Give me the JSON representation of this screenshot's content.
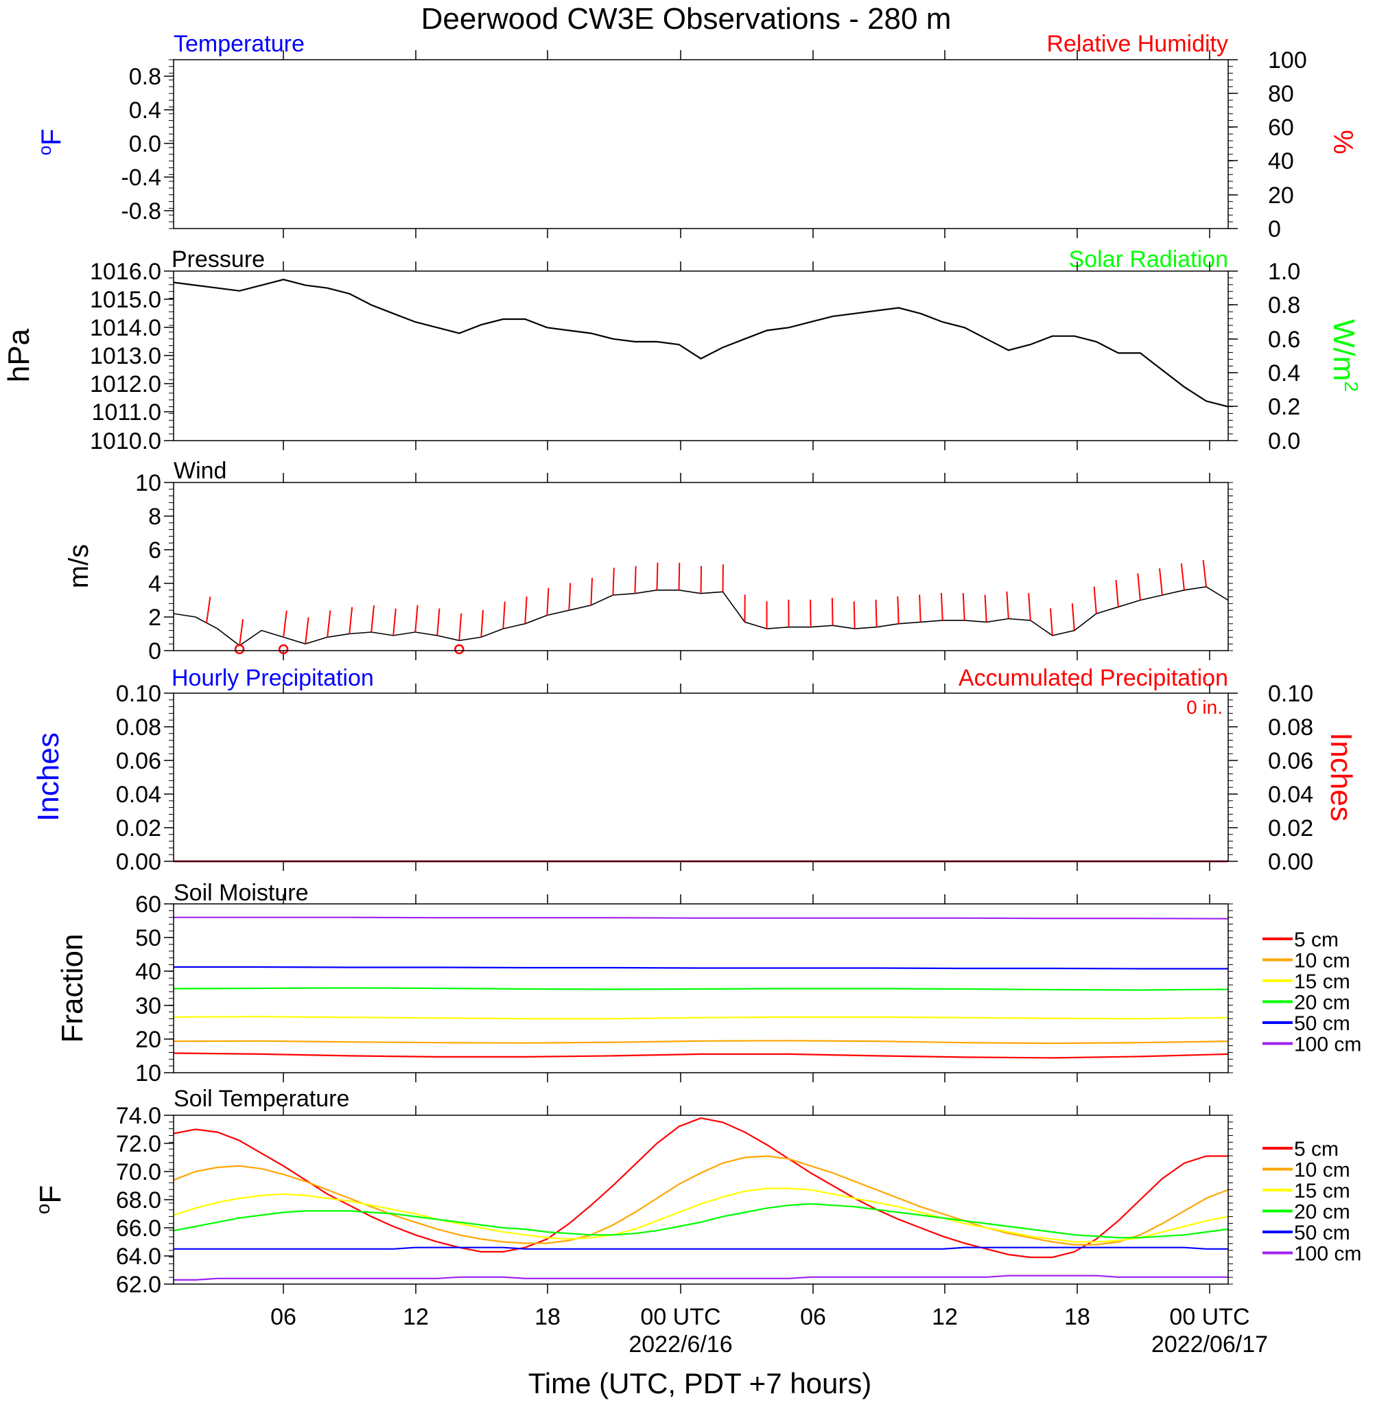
{
  "title": "Deerwood CW3E Observations - 280 m",
  "xlabel": "Time (UTC, PDT +7 hours)",
  "x_ticks": [
    {
      "label": "06",
      "date": ""
    },
    {
      "label": "12",
      "date": ""
    },
    {
      "label": "18",
      "date": ""
    },
    {
      "label": "00 UTC",
      "date": "2022/6/16"
    },
    {
      "label": "06",
      "date": ""
    },
    {
      "label": "12",
      "date": ""
    },
    {
      "label": "18",
      "date": ""
    },
    {
      "label": "00 UTC",
      "date": "2022/06/17"
    }
  ],
  "colors": {
    "red": "#ff0000",
    "orange": "#ffa500",
    "yellow": "#ffff00",
    "green": "#00ff00",
    "blue": "#0000ff",
    "purple": "#a020f0",
    "black": "#000000"
  },
  "panels": {
    "temperature": {
      "left_title": "Temperature",
      "right_title": "Relative Humidity",
      "left_unit": "oF",
      "right_unit": "%",
      "left_ticks": [
        "0.8",
        "0.4",
        "0.0",
        "-0.4",
        "-0.8"
      ],
      "right_ticks": [
        "100",
        "80",
        "60",
        "40",
        "20",
        "0"
      ]
    },
    "pressure": {
      "left_title": "Pressure",
      "right_title": "Solar Radiation",
      "left_unit": "hPa",
      "right_unit": "W/m2",
      "left_ticks": [
        "1016.0",
        "1015.0",
        "1014.0",
        "1013.0",
        "1012.0",
        "1011.0",
        "1010.0"
      ],
      "right_ticks": [
        "1.0",
        "0.8",
        "0.6",
        "0.4",
        "0.2",
        "0.0"
      ]
    },
    "wind": {
      "left_title": "Wind",
      "left_unit": "m/s",
      "left_ticks": [
        "10",
        "8",
        "6",
        "4",
        "2",
        "0"
      ]
    },
    "precip": {
      "left_title": "Hourly Precipitation",
      "right_title": "Accumulated Precipitation",
      "left_unit": "Inches",
      "right_unit": "Inches",
      "total": "0 in.",
      "left_ticks": [
        "0.10",
        "0.08",
        "0.06",
        "0.04",
        "0.02",
        "0.00"
      ],
      "right_ticks": [
        "0.10",
        "0.08",
        "0.06",
        "0.04",
        "0.02",
        "0.00"
      ]
    },
    "soil_moisture": {
      "left_title": "Soil Moisture",
      "left_unit": "Fraction",
      "left_ticks": [
        "60",
        "50",
        "40",
        "30",
        "20",
        "10"
      ],
      "legend": [
        "5 cm",
        "10 cm",
        "15 cm",
        "20 cm",
        "50 cm",
        "100 cm"
      ]
    },
    "soil_temp": {
      "left_title": "Soil Temperature",
      "left_unit": "oF",
      "left_ticks": [
        "74.0",
        "72.0",
        "70.0",
        "68.0",
        "66.0",
        "64.0",
        "62.0"
      ],
      "legend": [
        "5 cm",
        "10 cm",
        "15 cm",
        "20 cm",
        "50 cm",
        "100 cm"
      ]
    }
  },
  "chart_data": [
    {
      "type": "line",
      "panel": "temperature",
      "x_unit": "hours since 2022-06-15 01 UTC (approx)",
      "xlim": [
        0,
        48
      ],
      "ylim": [
        -1,
        1
      ],
      "y2lim": [
        0,
        100
      ],
      "series": []
    },
    {
      "type": "line",
      "panel": "pressure",
      "xlim": [
        0,
        48
      ],
      "ylim": [
        1010,
        1016
      ],
      "y2lim": [
        0,
        1
      ],
      "series": [
        {
          "name": "",
          "color": "#000000",
          "x": [
            0,
            1,
            2,
            3,
            4,
            5,
            6,
            7,
            8,
            9,
            10,
            11,
            12,
            13,
            14,
            15,
            16,
            17,
            18,
            19,
            20,
            21,
            22,
            23,
            24,
            25,
            26,
            27,
            28,
            29,
            30,
            31,
            32,
            33,
            34,
            35,
            36,
            37,
            38,
            39,
            40,
            41,
            42,
            43,
            44,
            45,
            46,
            47,
            48
          ],
          "y": [
            1015.6,
            1015.5,
            1015.4,
            1015.3,
            1015.5,
            1015.7,
            1015.5,
            1015.4,
            1015.2,
            1014.8,
            1014.5,
            1014.2,
            1014.0,
            1013.8,
            1014.1,
            1014.3,
            1014.3,
            1014.0,
            1013.9,
            1013.8,
            1013.6,
            1013.5,
            1013.5,
            1013.4,
            1012.9,
            1013.3,
            1013.6,
            1013.9,
            1014.0,
            1014.2,
            1014.4,
            1014.5,
            1014.6,
            1014.7,
            1014.5,
            1014.2,
            1014.0,
            1013.6,
            1013.2,
            1013.4,
            1013.7,
            1013.7,
            1013.5,
            1013.1,
            1013.1,
            1012.5,
            1011.9,
            1011.4,
            1011.2
          ]
        }
      ]
    },
    {
      "type": "line",
      "panel": "wind",
      "xlim": [
        0,
        48
      ],
      "ylim": [
        0,
        10
      ],
      "series": [
        {
          "name": "",
          "color": "#000000",
          "x": [
            0,
            1,
            2,
            3,
            4,
            5,
            6,
            7,
            8,
            9,
            10,
            11,
            12,
            13,
            14,
            15,
            16,
            17,
            18,
            19,
            20,
            21,
            22,
            23,
            24,
            25,
            26,
            27,
            28,
            29,
            30,
            31,
            32,
            33,
            34,
            35,
            36,
            37,
            38,
            39,
            40,
            41,
            42,
            43,
            44,
            45,
            46,
            47,
            48
          ],
          "y": [
            2.2,
            2.0,
            1.3,
            0.3,
            1.2,
            0.8,
            0.4,
            0.8,
            1.0,
            1.1,
            0.9,
            1.1,
            0.9,
            0.6,
            0.8,
            1.3,
            1.6,
            2.1,
            2.4,
            2.7,
            3.3,
            3.4,
            3.6,
            3.6,
            3.4,
            3.5,
            1.7,
            1.3,
            1.4,
            1.4,
            1.5,
            1.3,
            1.4,
            1.6,
            1.7,
            1.8,
            1.8,
            1.7,
            1.9,
            1.8,
            0.9,
            1.2,
            2.2,
            2.6,
            3.0,
            3.3,
            3.6,
            3.8,
            3.0
          ]
        }
      ],
      "barb_x": [
        1.5,
        3,
        5,
        6,
        7,
        8,
        9,
        10,
        11,
        12,
        13,
        14,
        15,
        16,
        17,
        18,
        19,
        20,
        21,
        22,
        23,
        24,
        25,
        26,
        27,
        28,
        29,
        30,
        31,
        32,
        33,
        34,
        35,
        36,
        37,
        38,
        39,
        40,
        41,
        42,
        43,
        44,
        45,
        46,
        47
      ],
      "calm_x": [
        3,
        5,
        13
      ]
    },
    {
      "type": "line",
      "panel": "precip",
      "xlim": [
        0,
        48
      ],
      "ylim": [
        0,
        0.1
      ],
      "series": [
        {
          "name": "",
          "color": "#0000ff",
          "x": [
            0,
            48
          ],
          "y": [
            0,
            0
          ]
        },
        {
          "name": "",
          "color": "#ff0000",
          "x": [
            0,
            48
          ],
          "y": [
            0,
            0
          ]
        }
      ]
    },
    {
      "type": "line",
      "panel": "soil_moisture",
      "xlim": [
        0,
        48
      ],
      "ylim": [
        10,
        60
      ],
      "x": [
        0,
        4,
        8,
        12,
        16,
        20,
        24,
        28,
        32,
        36,
        40,
        44,
        48
      ],
      "series": [
        {
          "name": "5 cm",
          "color": "#ff0000",
          "values": [
            15.8,
            15.5,
            15.0,
            14.7,
            14.7,
            15.0,
            15.5,
            15.5,
            15.0,
            14.6,
            14.4,
            14.8,
            15.5
          ]
        },
        {
          "name": "10 cm",
          "color": "#ffa500",
          "values": [
            19.3,
            19.4,
            19.1,
            18.9,
            18.8,
            19.0,
            19.4,
            19.5,
            19.3,
            18.9,
            18.7,
            18.9,
            19.3
          ]
        },
        {
          "name": "15 cm",
          "color": "#ffff00",
          "values": [
            26.5,
            26.6,
            26.4,
            26.2,
            26.0,
            26.0,
            26.3,
            26.5,
            26.5,
            26.3,
            26.1,
            26.0,
            26.3
          ]
        },
        {
          "name": "20 cm",
          "color": "#00ff00",
          "values": [
            34.9,
            35.0,
            35.1,
            35.0,
            34.8,
            34.7,
            34.8,
            34.9,
            34.9,
            34.8,
            34.6,
            34.5,
            34.7
          ]
        },
        {
          "name": "50 cm",
          "color": "#0000ff",
          "values": [
            41.3,
            41.3,
            41.2,
            41.2,
            41.1,
            41.1,
            41.0,
            41.0,
            41.0,
            40.9,
            40.9,
            40.8,
            40.8
          ]
        },
        {
          "name": "100 cm",
          "color": "#a020f0",
          "values": [
            56.0,
            56.0,
            56.0,
            55.9,
            55.9,
            55.9,
            55.8,
            55.8,
            55.8,
            55.8,
            55.7,
            55.7,
            55.6
          ]
        }
      ]
    },
    {
      "type": "line",
      "panel": "soil_temp",
      "xlim": [
        0,
        48
      ],
      "ylim": [
        62,
        74
      ],
      "x": [
        0,
        1,
        2,
        3,
        4,
        5,
        6,
        7,
        8,
        9,
        10,
        11,
        12,
        13,
        14,
        15,
        16,
        17,
        18,
        19,
        20,
        21,
        22,
        23,
        24,
        25,
        26,
        27,
        28,
        29,
        30,
        31,
        32,
        33,
        34,
        35,
        36,
        37,
        38,
        39,
        40,
        41,
        42,
        43,
        44,
        45,
        46,
        47,
        48
      ],
      "series": [
        {
          "name": "5 cm",
          "color": "#ff0000",
          "values": [
            72.7,
            73.0,
            72.8,
            72.2,
            71.3,
            70.4,
            69.4,
            68.4,
            67.6,
            66.8,
            66.1,
            65.5,
            65.0,
            64.6,
            64.3,
            64.3,
            64.6,
            65.2,
            66.3,
            67.6,
            69.0,
            70.5,
            72.0,
            73.2,
            73.8,
            73.5,
            72.8,
            71.9,
            70.9,
            69.9,
            69.0,
            68.1,
            67.3,
            66.6,
            66.0,
            65.4,
            64.9,
            64.5,
            64.1,
            63.9,
            63.9,
            64.3,
            65.2,
            66.5,
            68.0,
            69.5,
            70.6,
            71.1,
            71.1
          ]
        },
        {
          "name": "10 cm",
          "color": "#ffa500",
          "values": [
            69.4,
            70.0,
            70.3,
            70.4,
            70.2,
            69.8,
            69.3,
            68.7,
            68.1,
            67.5,
            66.9,
            66.4,
            65.9,
            65.5,
            65.2,
            65.0,
            64.9,
            64.9,
            65.1,
            65.5,
            66.2,
            67.1,
            68.1,
            69.1,
            69.9,
            70.6,
            71.0,
            71.1,
            70.9,
            70.4,
            69.9,
            69.3,
            68.7,
            68.1,
            67.5,
            67.0,
            66.5,
            66.0,
            65.6,
            65.3,
            65.0,
            64.8,
            64.8,
            65.0,
            65.5,
            66.3,
            67.2,
            68.1,
            68.7
          ]
        },
        {
          "name": "15 cm",
          "color": "#ffff00",
          "values": [
            66.9,
            67.4,
            67.8,
            68.1,
            68.3,
            68.4,
            68.3,
            68.1,
            67.9,
            67.6,
            67.3,
            67.0,
            66.6,
            66.3,
            66.0,
            65.7,
            65.5,
            65.3,
            65.2,
            65.3,
            65.5,
            65.9,
            66.5,
            67.1,
            67.7,
            68.2,
            68.6,
            68.8,
            68.8,
            68.7,
            68.4,
            68.1,
            67.8,
            67.5,
            67.1,
            66.7,
            66.3,
            66.0,
            65.7,
            65.4,
            65.2,
            65.0,
            65.0,
            65.1,
            65.3,
            65.7,
            66.1,
            66.5,
            66.8
          ]
        },
        {
          "name": "20 cm",
          "color": "#00ff00",
          "values": [
            65.8,
            66.1,
            66.4,
            66.7,
            66.9,
            67.1,
            67.2,
            67.2,
            67.2,
            67.1,
            67.0,
            66.8,
            66.6,
            66.4,
            66.2,
            66.0,
            65.9,
            65.7,
            65.6,
            65.5,
            65.5,
            65.6,
            65.8,
            66.1,
            66.4,
            66.8,
            67.1,
            67.4,
            67.6,
            67.7,
            67.6,
            67.5,
            67.3,
            67.1,
            66.9,
            66.7,
            66.5,
            66.3,
            66.1,
            65.9,
            65.7,
            65.5,
            65.4,
            65.3,
            65.3,
            65.4,
            65.5,
            65.7,
            65.9
          ]
        },
        {
          "name": "50 cm",
          "color": "#0000ff",
          "values": [
            64.5,
            64.5,
            64.5,
            64.5,
            64.5,
            64.5,
            64.5,
            64.5,
            64.5,
            64.5,
            64.5,
            64.6,
            64.6,
            64.6,
            64.6,
            64.6,
            64.5,
            64.5,
            64.5,
            64.5,
            64.5,
            64.5,
            64.5,
            64.5,
            64.5,
            64.5,
            64.5,
            64.5,
            64.5,
            64.5,
            64.5,
            64.5,
            64.5,
            64.5,
            64.5,
            64.5,
            64.6,
            64.6,
            64.6,
            64.6,
            64.6,
            64.6,
            64.6,
            64.6,
            64.6,
            64.6,
            64.6,
            64.5,
            64.5
          ]
        },
        {
          "name": "100 cm",
          "color": "#a020f0",
          "values": [
            62.3,
            62.3,
            62.4,
            62.4,
            62.4,
            62.4,
            62.4,
            62.4,
            62.4,
            62.4,
            62.4,
            62.4,
            62.4,
            62.5,
            62.5,
            62.5,
            62.4,
            62.4,
            62.4,
            62.4,
            62.4,
            62.4,
            62.4,
            62.4,
            62.4,
            62.4,
            62.4,
            62.4,
            62.4,
            62.5,
            62.5,
            62.5,
            62.5,
            62.5,
            62.5,
            62.5,
            62.5,
            62.5,
            62.6,
            62.6,
            62.6,
            62.6,
            62.6,
            62.5,
            62.5,
            62.5,
            62.5,
            62.5,
            62.5
          ]
        }
      ]
    }
  ]
}
